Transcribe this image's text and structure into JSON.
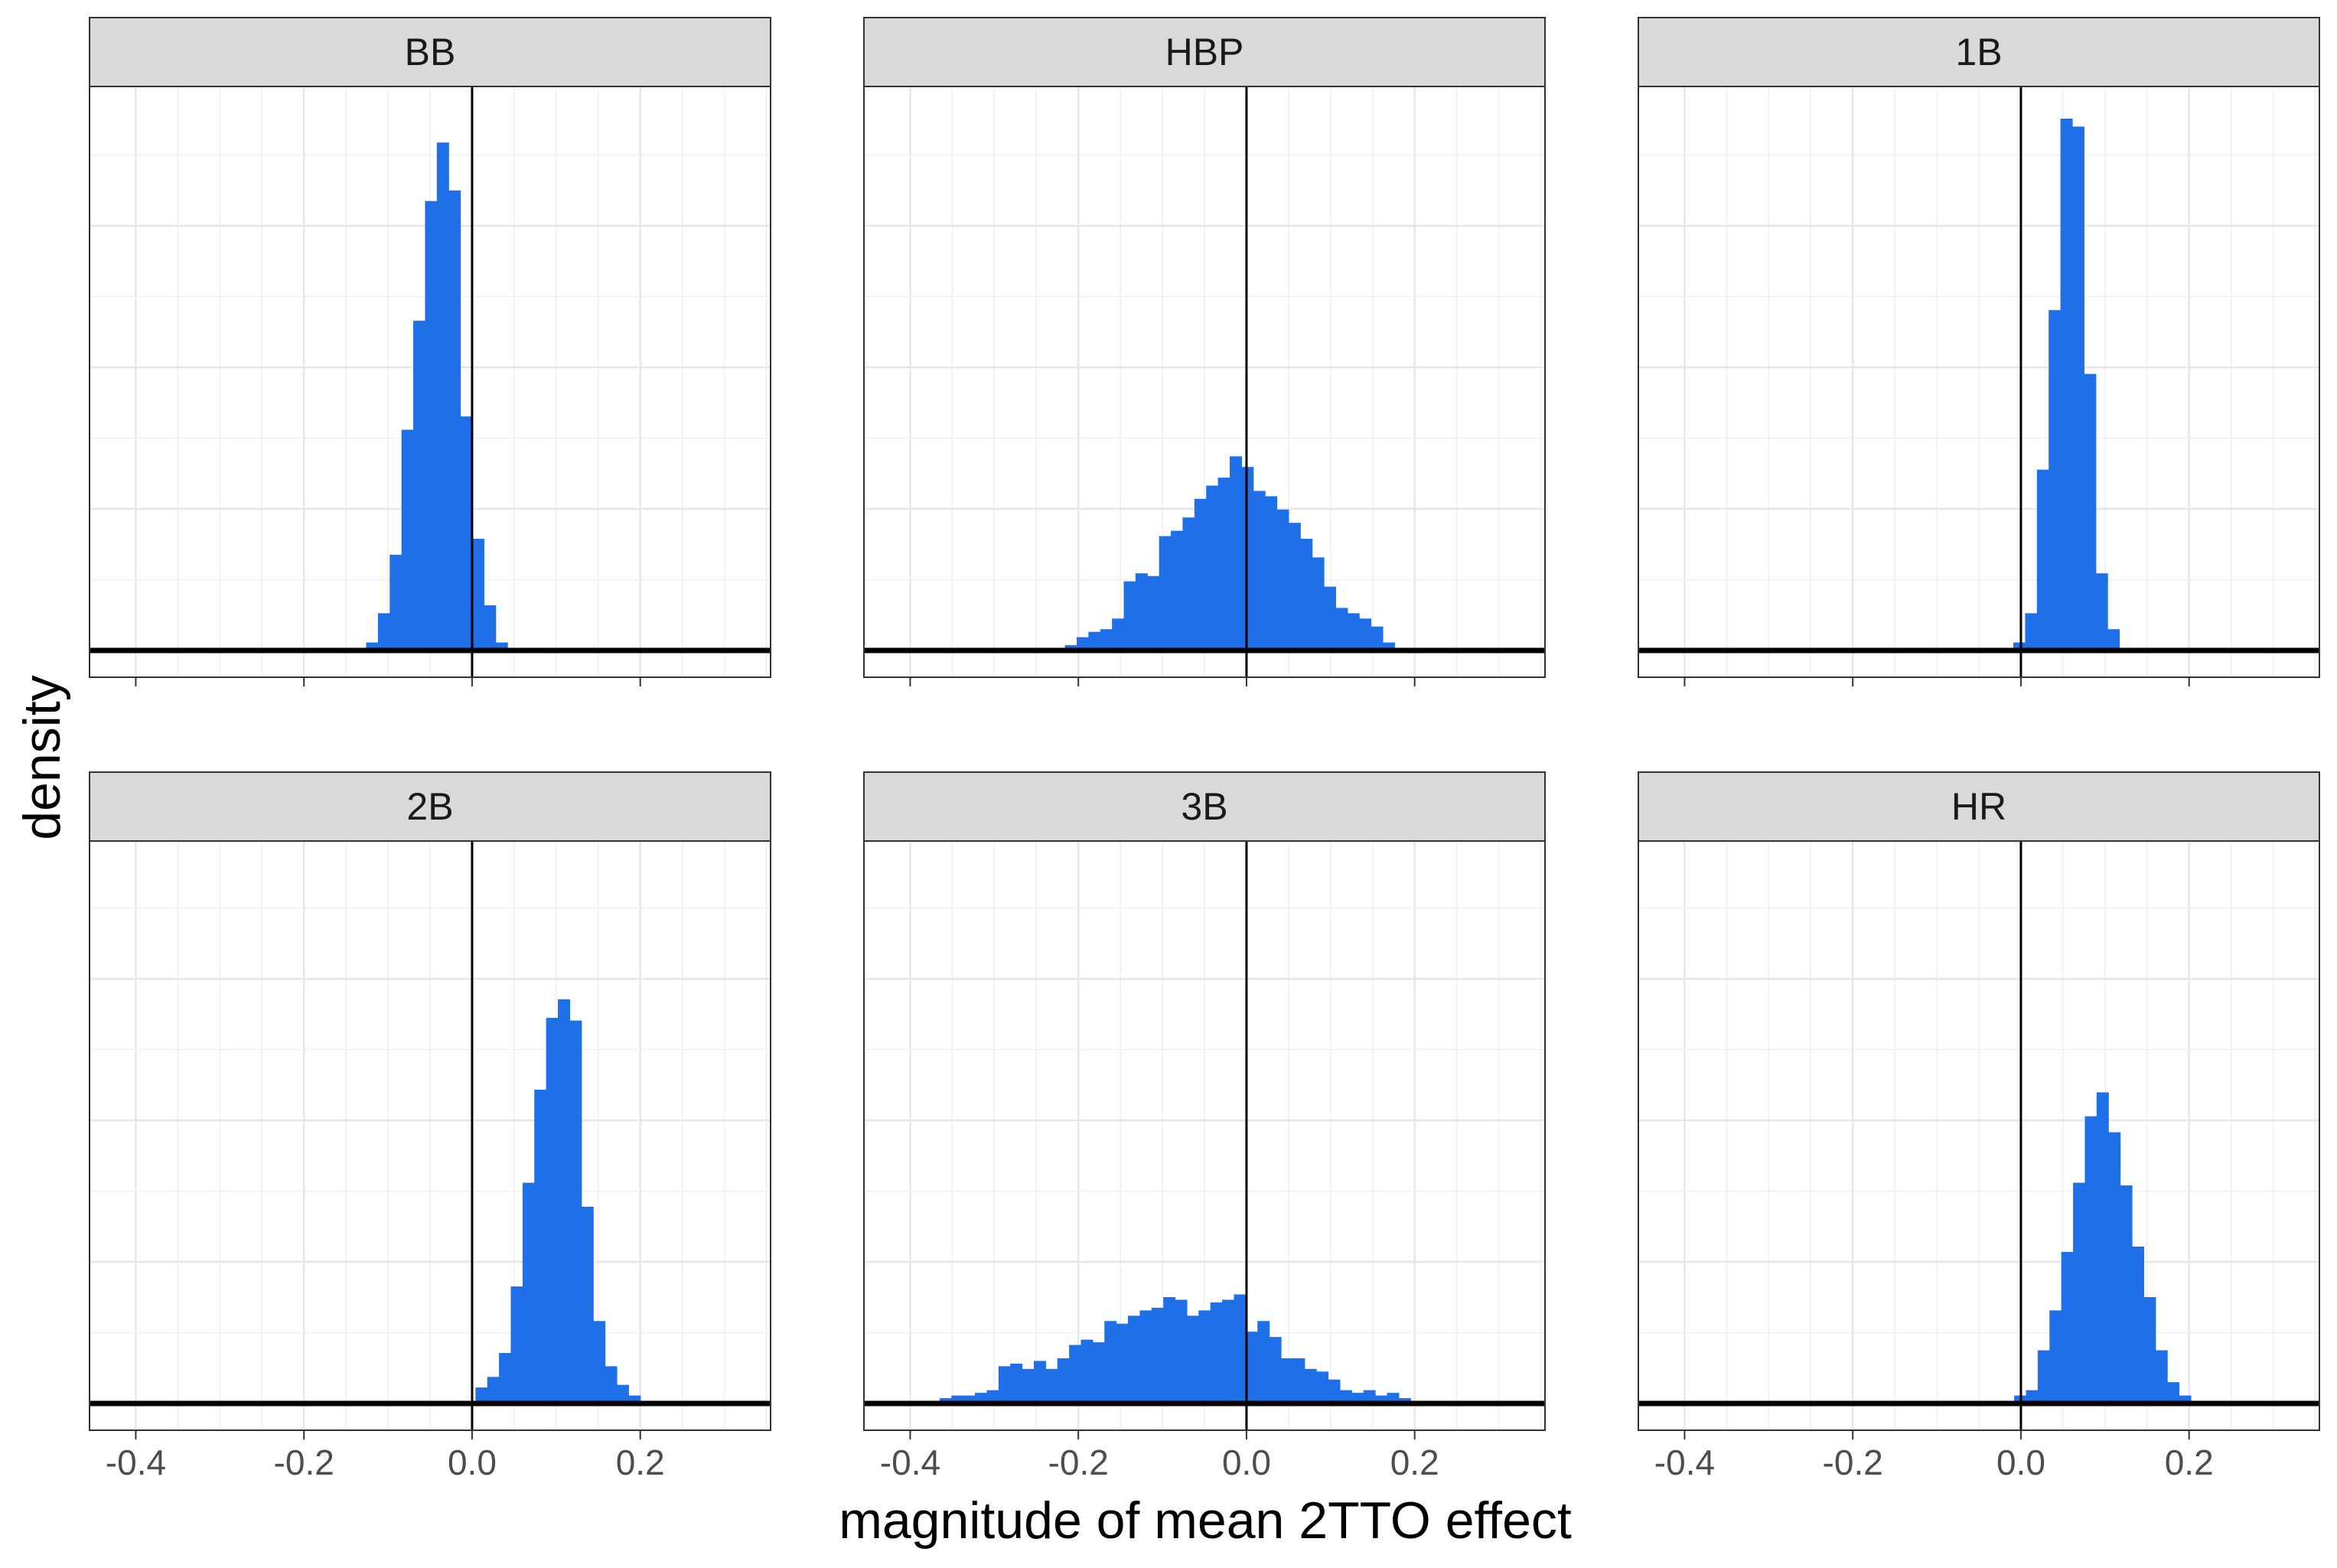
{
  "chart_data": {
    "type": "histogram",
    "layout": "facet-grid 2x3",
    "xlabel": "magnitude of mean 2TTO effect",
    "ylabel": "density",
    "xlim": [
      -0.455,
      0.355
    ],
    "ylim": [
      0,
      1.0
    ],
    "x_ticks": [
      -0.4,
      -0.2,
      0.0,
      0.2
    ],
    "x_tick_labels": [
      "-0.4",
      "-0.2",
      "0.0",
      "0.2"
    ],
    "grid": true,
    "bar_color": "#1f6fe8",
    "reference_line_x": 0.0,
    "bin_width": 0.014,
    "panels": [
      {
        "title": "BB",
        "bins": [
          {
            "x0": -0.126,
            "y": 0.015
          },
          {
            "x0": -0.112,
            "y": 0.07
          },
          {
            "x0": -0.098,
            "y": 0.18
          },
          {
            "x0": -0.084,
            "y": 0.415
          },
          {
            "x0": -0.07,
            "y": 0.62
          },
          {
            "x0": -0.056,
            "y": 0.845
          },
          {
            "x0": -0.042,
            "y": 0.955
          },
          {
            "x0": -0.028,
            "y": 0.865
          },
          {
            "x0": -0.014,
            "y": 0.44
          },
          {
            "x0": 0.0,
            "y": 0.21
          },
          {
            "x0": 0.014,
            "y": 0.085
          },
          {
            "x0": 0.028,
            "y": 0.015
          }
        ]
      },
      {
        "title": "HBP",
        "bins": [
          {
            "x0": -0.244,
            "y": 0.005
          },
          {
            "x0": -0.23,
            "y": 0.005
          },
          {
            "x0": -0.216,
            "y": 0.01
          },
          {
            "x0": -0.202,
            "y": 0.025
          },
          {
            "x0": -0.188,
            "y": 0.035
          },
          {
            "x0": -0.174,
            "y": 0.04
          },
          {
            "x0": -0.16,
            "y": 0.06
          },
          {
            "x0": -0.146,
            "y": 0.13
          },
          {
            "x0": -0.132,
            "y": 0.145
          },
          {
            "x0": -0.118,
            "y": 0.14
          },
          {
            "x0": -0.104,
            "y": 0.215
          },
          {
            "x0": -0.09,
            "y": 0.225
          },
          {
            "x0": -0.076,
            "y": 0.25
          },
          {
            "x0": -0.062,
            "y": 0.285
          },
          {
            "x0": -0.048,
            "y": 0.31
          },
          {
            "x0": -0.034,
            "y": 0.325
          },
          {
            "x0": -0.02,
            "y": 0.365
          },
          {
            "x0": -0.006,
            "y": 0.345
          },
          {
            "x0": 0.008,
            "y": 0.3
          },
          {
            "x0": 0.022,
            "y": 0.29
          },
          {
            "x0": 0.036,
            "y": 0.265
          },
          {
            "x0": 0.05,
            "y": 0.24
          },
          {
            "x0": 0.064,
            "y": 0.21
          },
          {
            "x0": 0.078,
            "y": 0.175
          },
          {
            "x0": 0.092,
            "y": 0.12
          },
          {
            "x0": 0.106,
            "y": 0.08
          },
          {
            "x0": 0.12,
            "y": 0.07
          },
          {
            "x0": 0.134,
            "y": 0.06
          },
          {
            "x0": 0.148,
            "y": 0.045
          },
          {
            "x0": 0.162,
            "y": 0.015
          }
        ]
      },
      {
        "title": "1B",
        "bins": [
          {
            "x0": -0.009,
            "y": 0.015
          },
          {
            "x0": 0.005,
            "y": 0.07
          },
          {
            "x0": 0.019,
            "y": 0.34
          },
          {
            "x0": 0.033,
            "y": 0.64
          },
          {
            "x0": 0.047,
            "y": 1.0
          },
          {
            "x0": 0.061,
            "y": 0.985
          },
          {
            "x0": 0.075,
            "y": 0.52
          },
          {
            "x0": 0.089,
            "y": 0.145
          },
          {
            "x0": 0.103,
            "y": 0.04
          }
        ]
      },
      {
        "title": "2B",
        "bins": [
          {
            "x0": 0.004,
            "y": 0.03
          },
          {
            "x0": 0.018,
            "y": 0.05
          },
          {
            "x0": 0.032,
            "y": 0.095
          },
          {
            "x0": 0.046,
            "y": 0.22
          },
          {
            "x0": 0.06,
            "y": 0.415
          },
          {
            "x0": 0.074,
            "y": 0.59
          },
          {
            "x0": 0.088,
            "y": 0.725
          },
          {
            "x0": 0.102,
            "y": 0.76
          },
          {
            "x0": 0.116,
            "y": 0.72
          },
          {
            "x0": 0.13,
            "y": 0.37
          },
          {
            "x0": 0.144,
            "y": 0.155
          },
          {
            "x0": 0.158,
            "y": 0.07
          },
          {
            "x0": 0.172,
            "y": 0.035
          },
          {
            "x0": 0.186,
            "y": 0.015
          },
          {
            "x0": 0.2,
            "y": 0.005
          }
        ]
      },
      {
        "title": "3B",
        "bins": [
          {
            "x0": -0.365,
            "y": 0.01
          },
          {
            "x0": -0.351,
            "y": 0.015
          },
          {
            "x0": -0.337,
            "y": 0.015
          },
          {
            "x0": -0.323,
            "y": 0.02
          },
          {
            "x0": -0.309,
            "y": 0.025
          },
          {
            "x0": -0.295,
            "y": 0.07
          },
          {
            "x0": -0.281,
            "y": 0.075
          },
          {
            "x0": -0.267,
            "y": 0.065
          },
          {
            "x0": -0.253,
            "y": 0.08
          },
          {
            "x0": -0.239,
            "y": 0.065
          },
          {
            "x0": -0.225,
            "y": 0.085
          },
          {
            "x0": -0.211,
            "y": 0.11
          },
          {
            "x0": -0.197,
            "y": 0.12
          },
          {
            "x0": -0.183,
            "y": 0.115
          },
          {
            "x0": -0.169,
            "y": 0.155
          },
          {
            "x0": -0.155,
            "y": 0.15
          },
          {
            "x0": -0.141,
            "y": 0.165
          },
          {
            "x0": -0.127,
            "y": 0.175
          },
          {
            "x0": -0.113,
            "y": 0.18
          },
          {
            "x0": -0.099,
            "y": 0.2
          },
          {
            "x0": -0.085,
            "y": 0.195
          },
          {
            "x0": -0.071,
            "y": 0.165
          },
          {
            "x0": -0.057,
            "y": 0.175
          },
          {
            "x0": -0.043,
            "y": 0.19
          },
          {
            "x0": -0.029,
            "y": 0.195
          },
          {
            "x0": -0.015,
            "y": 0.205
          },
          {
            "x0": -0.001,
            "y": 0.135
          },
          {
            "x0": 0.013,
            "y": 0.155
          },
          {
            "x0": 0.027,
            "y": 0.125
          },
          {
            "x0": 0.041,
            "y": 0.085
          },
          {
            "x0": 0.055,
            "y": 0.085
          },
          {
            "x0": 0.069,
            "y": 0.065
          },
          {
            "x0": 0.083,
            "y": 0.06
          },
          {
            "x0": 0.097,
            "y": 0.045
          },
          {
            "x0": 0.111,
            "y": 0.025
          },
          {
            "x0": 0.125,
            "y": 0.02
          },
          {
            "x0": 0.139,
            "y": 0.025
          },
          {
            "x0": 0.153,
            "y": 0.015
          },
          {
            "x0": 0.167,
            "y": 0.02
          },
          {
            "x0": 0.181,
            "y": 0.01
          },
          {
            "x0": 0.195,
            "y": 0.005
          },
          {
            "x0": 0.209,
            "y": 0.005
          }
        ]
      },
      {
        "title": "HR",
        "bins": [
          {
            "x0": -0.008,
            "y": 0.015
          },
          {
            "x0": 0.006,
            "y": 0.025
          },
          {
            "x0": 0.02,
            "y": 0.1
          },
          {
            "x0": 0.034,
            "y": 0.175
          },
          {
            "x0": 0.048,
            "y": 0.285
          },
          {
            "x0": 0.062,
            "y": 0.415
          },
          {
            "x0": 0.076,
            "y": 0.54
          },
          {
            "x0": 0.09,
            "y": 0.585
          },
          {
            "x0": 0.104,
            "y": 0.51
          },
          {
            "x0": 0.118,
            "y": 0.41
          },
          {
            "x0": 0.132,
            "y": 0.295
          },
          {
            "x0": 0.146,
            "y": 0.2
          },
          {
            "x0": 0.16,
            "y": 0.1
          },
          {
            "x0": 0.174,
            "y": 0.04
          },
          {
            "x0": 0.188,
            "y": 0.015
          },
          {
            "x0": 0.202,
            "y": 0.005
          }
        ]
      }
    ]
  }
}
